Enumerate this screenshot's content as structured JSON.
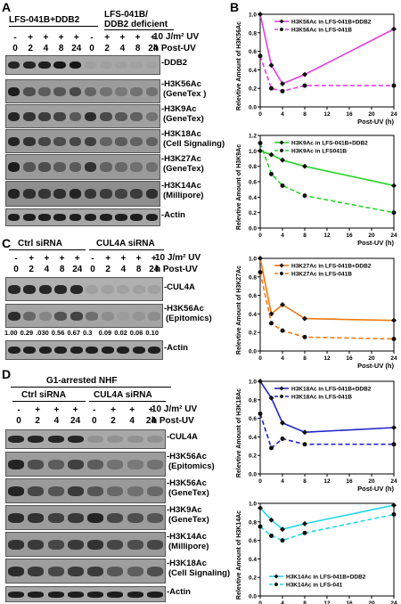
{
  "panels": {
    "A": "A",
    "B": "B",
    "C": "C",
    "D": "D"
  },
  "panelA": {
    "group1": "LFS-041B+DDB2",
    "group2_line1": "LFS-041B/",
    "group2_line2": "DDB2 deficient",
    "uv_row": [
      "-",
      "+",
      "+",
      "+",
      "+",
      "-",
      "+",
      "+",
      "+",
      "+"
    ],
    "uv_label": "10 J/m² UV",
    "time_row": [
      "0",
      "2",
      "4",
      "8",
      "24",
      "0",
      "2",
      "4",
      "8",
      "24"
    ],
    "time_label": "h Post-UV",
    "blots": [
      {
        "l1": "-DDB2",
        "l2": ""
      },
      {
        "l1": "-H3K56Ac",
        "l2": "(GeneTex )"
      },
      {
        "l1": "-H3K9Ac",
        "l2": "(GeneTex)"
      },
      {
        "l1": "-H3K18Ac",
        "l2": "(Cell Signaling)"
      },
      {
        "l1": "-H3K27Ac",
        "l2": "(GeneTex)"
      },
      {
        "l1": "-H3K14Ac",
        "l2": "(Millipore)"
      },
      {
        "l1": "-Actin",
        "l2": ""
      }
    ]
  },
  "panelC": {
    "group1": "Ctrl siRNA",
    "group2": "CUL4A siRNA",
    "uv_row": [
      "-",
      "+",
      "+",
      "+",
      "+",
      "-",
      "+",
      "+",
      "+",
      "+"
    ],
    "uv_label": "10 J/m² UV",
    "time_row": [
      "0",
      "2",
      "4",
      "8",
      "24",
      "0",
      "2",
      "4",
      "8",
      "24"
    ],
    "time_label": "h Post-UV",
    "blots": [
      {
        "l1": "-CUL4A",
        "l2": ""
      },
      {
        "l1": "-H3K56Ac",
        "l2": "(Epitomics)"
      },
      {
        "l1": "-Actin",
        "l2": ""
      }
    ],
    "quant": [
      "1.00",
      "0.29",
      ".030",
      "0.56",
      "0.67",
      "0.3",
      "0.09",
      "0.02",
      "0.06",
      "0.10"
    ]
  },
  "panelD": {
    "title": "G1-arrested NHF",
    "group1": "Ctrl siRNA",
    "group2": "CUL4A siRNA",
    "uv_row": [
      "-",
      "+",
      "+",
      "+",
      "-",
      "+",
      "+",
      "+"
    ],
    "uv_label": "10 J/m² UV",
    "time_row": [
      "0",
      "2",
      "4",
      "24",
      "0",
      "2",
      "4",
      "24"
    ],
    "time_label": "h Post-UV",
    "blots": [
      {
        "l1": "-CUL4A",
        "l2": ""
      },
      {
        "l1": "-H3K56Ac",
        "l2": "(Epitomics)"
      },
      {
        "l1": "-H3K56Ac",
        "l2": "(GeneTex)"
      },
      {
        "l1": "-H3K9Ac",
        "l2": "(GeneTex)"
      },
      {
        "l1": "-H3K14Ac",
        "l2": "(Millipore)"
      },
      {
        "l1": "-H3K18Ac",
        "l2": "(Cell Signaling)"
      },
      {
        "l1": "-Actin",
        "l2": ""
      }
    ]
  },
  "chart_data": [
    {
      "type": "line",
      "ylabel": "Relevtive Amount of H3K56Ac",
      "xlabel": "Post-UV (h)",
      "x": [
        0,
        2,
        4,
        8,
        24
      ],
      "xticks": [
        0,
        4,
        8,
        12,
        16,
        20,
        24
      ],
      "ylim": [
        0,
        1.0
      ],
      "yticks": [
        "0.0",
        "0.2",
        "0.4",
        "0.6",
        "0.8",
        "1.0"
      ],
      "legend": "top-right",
      "series": [
        {
          "name": "H3K56Ac in LFS-041B+DDB2",
          "color": "#e23ee6",
          "dashed": false,
          "values": [
            1.0,
            0.45,
            0.25,
            0.35,
            0.84
          ]
        },
        {
          "name": "H3K56Ac in LFS-041B",
          "color": "#e23ee6",
          "dashed": true,
          "values": [
            0.55,
            0.2,
            0.17,
            0.23,
            0.23
          ]
        }
      ]
    },
    {
      "type": "line",
      "ylabel": "Relevtive Amount of H3K9Ac",
      "xlabel": "Post-UV (h)",
      "x": [
        0,
        2,
        4,
        8,
        24
      ],
      "xticks": [
        0,
        4,
        8,
        12,
        16,
        20,
        24
      ],
      "ylim": [
        0,
        1.2
      ],
      "yticks": [
        "0.0",
        "0.2",
        "0.4",
        "0.6",
        "0.8",
        "1.0",
        "1.2"
      ],
      "legend": "top-right",
      "series": [
        {
          "name": "H3K9Ac in LFS-041B+DDB2",
          "color": "#27d627",
          "dashed": false,
          "values": [
            1.0,
            0.95,
            0.88,
            0.8,
            0.55
          ]
        },
        {
          "name": "H3K9Ac in LFS041B",
          "color": "#27d627",
          "dashed": true,
          "values": [
            1.1,
            0.7,
            0.55,
            0.42,
            0.2
          ]
        }
      ]
    },
    {
      "type": "line",
      "ylabel": "Relevtive Amount of H3K27Ac",
      "xlabel": "Post-UV (h)",
      "x": [
        0,
        2,
        4,
        8,
        24
      ],
      "xticks": [
        0,
        4,
        8,
        12,
        16,
        20,
        24
      ],
      "ylim": [
        0,
        1.0
      ],
      "yticks": [
        "0.0",
        "0.2",
        "0.4",
        "0.6",
        "0.8",
        "1.0"
      ],
      "legend": "top-right",
      "series": [
        {
          "name": "H3K27Ac in LFS-041B+DDB2",
          "color": "#f07a10",
          "dashed": false,
          "values": [
            1.0,
            0.4,
            0.5,
            0.35,
            0.33
          ]
        },
        {
          "name": "H3K27Ac in LFS-041B",
          "color": "#f07a10",
          "dashed": true,
          "values": [
            0.85,
            0.3,
            0.22,
            0.15,
            0.13
          ]
        }
      ]
    },
    {
      "type": "line",
      "ylabel": "Relevtive Amount of H3K18Ac",
      "xlabel": "Post-UV (h)",
      "x": [
        0,
        2,
        4,
        8,
        24
      ],
      "xticks": [
        0,
        4,
        8,
        12,
        16,
        20,
        24
      ],
      "ylim": [
        0,
        1.0
      ],
      "yticks": [
        "0.0",
        "0.2",
        "0.4",
        "0.6",
        "0.8",
        "1.0"
      ],
      "legend": "top-right",
      "series": [
        {
          "name": "H3K18Ac in LFS-041B+DDB2",
          "color": "#1f24c8",
          "dashed": false,
          "values": [
            1.0,
            0.82,
            0.55,
            0.45,
            0.5
          ]
        },
        {
          "name": "H3K18Ac in LFS-041B",
          "color": "#1f24c8",
          "dashed": true,
          "values": [
            0.65,
            0.28,
            0.38,
            0.32,
            0.32
          ]
        }
      ]
    },
    {
      "type": "line",
      "ylabel": "Relevtive Amount of H3K14Ac",
      "xlabel": "Post-UV (h)",
      "x": [
        0,
        2,
        4,
        8,
        24
      ],
      "xticks": [
        0,
        4,
        8,
        12,
        16,
        20,
        24
      ],
      "ylim": [
        0,
        1.0
      ],
      "yticks": [
        "0.0",
        "0.2",
        "0.4",
        "0.6",
        "0.8",
        "1.0"
      ],
      "legend": "bottom-left",
      "series": [
        {
          "name": "H3K14Ac in LFS-041B+DDB2",
          "color": "#20d8e8",
          "dashed": false,
          "values": [
            0.95,
            0.82,
            0.72,
            0.78,
            0.98
          ]
        },
        {
          "name": "H3K14Ac in LFS-041",
          "color": "#20d8e8",
          "dashed": true,
          "values": [
            0.75,
            0.65,
            0.6,
            0.68,
            0.88
          ]
        }
      ]
    }
  ]
}
